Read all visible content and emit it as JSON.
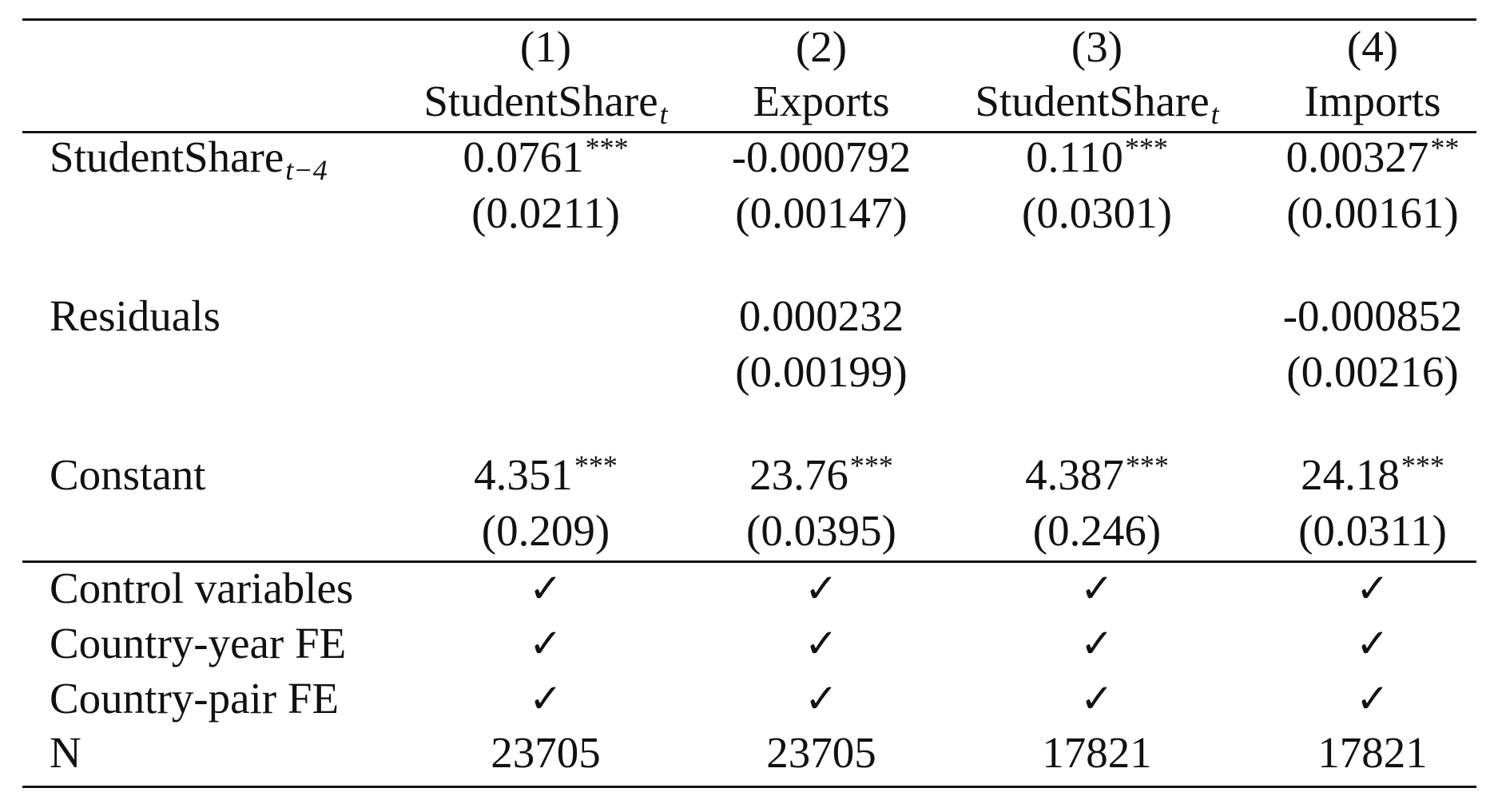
{
  "header": {
    "col_numbers": [
      "(1)",
      "(2)",
      "(3)",
      "(4)"
    ],
    "dep_vars": [
      {
        "base": "StudentShare",
        "sub": "t"
      },
      {
        "base": "Exports",
        "sub": ""
      },
      {
        "base": "StudentShare",
        "sub": "t"
      },
      {
        "base": "Imports",
        "sub": ""
      }
    ]
  },
  "rows": [
    {
      "label": "StudentShare",
      "label_sub": "t−4",
      "coefs": [
        {
          "value": "0.0761",
          "stars": "***"
        },
        {
          "value": "-0.000792",
          "stars": ""
        },
        {
          "value": "0.110",
          "stars": "***"
        },
        {
          "value": "0.00327",
          "stars": "**"
        }
      ],
      "ses": [
        "(0.0211)",
        "(0.00147)",
        "(0.0301)",
        "(0.00161)"
      ]
    },
    {
      "label": "Residuals",
      "label_sub": "",
      "coefs": [
        {
          "value": "",
          "stars": ""
        },
        {
          "value": "0.000232",
          "stars": ""
        },
        {
          "value": "",
          "stars": ""
        },
        {
          "value": "-0.000852",
          "stars": ""
        }
      ],
      "ses": [
        "",
        "(0.00199)",
        "",
        "(0.00216)"
      ]
    },
    {
      "label": "Constant",
      "label_sub": "",
      "coefs": [
        {
          "value": "4.351",
          "stars": "***"
        },
        {
          "value": "23.76",
          "stars": "***"
        },
        {
          "value": "4.387",
          "stars": "***"
        },
        {
          "value": "24.18",
          "stars": "***"
        }
      ],
      "ses": [
        "(0.209)",
        "(0.0395)",
        "(0.246)",
        "(0.0311)"
      ]
    }
  ],
  "controls": [
    {
      "label": "Control variables",
      "marks": [
        "✓",
        "✓",
        "✓",
        "✓"
      ]
    },
    {
      "label": "Country-year FE",
      "marks": [
        "✓",
        "✓",
        "✓",
        "✓"
      ]
    },
    {
      "label": "Country-pair FE",
      "marks": [
        "✓",
        "✓",
        "✓",
        "✓"
      ]
    }
  ],
  "n_row": {
    "label": "N",
    "values": [
      "23705",
      "23705",
      "17821",
      "17821"
    ]
  }
}
